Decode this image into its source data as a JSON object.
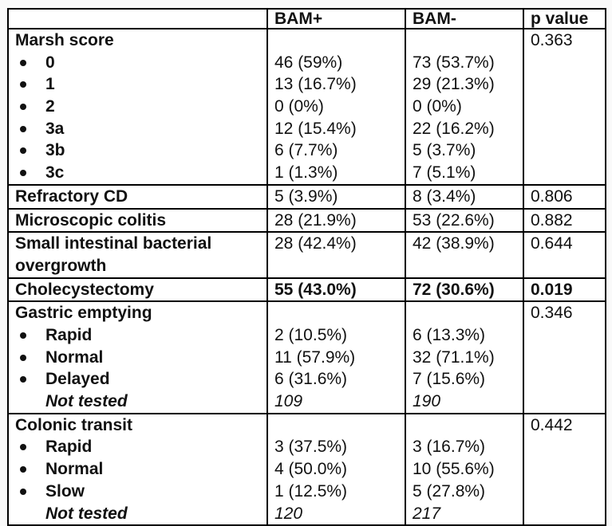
{
  "page": {
    "background": "#fafafa",
    "table_background": "#ffffff",
    "border_color": "#000000",
    "text_color": "#111111"
  },
  "table": {
    "header": {
      "col0": "",
      "col1": "BAM+",
      "col2": "BAM-",
      "col3": "p value"
    },
    "rows": [
      {
        "type": "group",
        "label": "Marsh score",
        "p": "0.363",
        "items": [
          {
            "bullet": true,
            "label": "0",
            "bam_pos": "46 (59%)",
            "bam_neg": "73 (53.7%)"
          },
          {
            "bullet": true,
            "label": "1",
            "bam_pos": "13 (16.7%)",
            "bam_neg": "29 (21.3%)"
          },
          {
            "bullet": true,
            "label": "2",
            "bam_pos": "0 (0%)",
            "bam_neg": "0 (0%)"
          },
          {
            "bullet": true,
            "label": "3a",
            "bam_pos": "12 (15.4%)",
            "bam_neg": "22 (16.2%)"
          },
          {
            "bullet": true,
            "label": "3b",
            "bam_pos": "6 (7.7%)",
            "bam_neg": "5 (3.7%)"
          },
          {
            "bullet": true,
            "label": "3c",
            "bam_pos": "1 (1.3%)",
            "bam_neg": "7 (5.1%)"
          }
        ]
      },
      {
        "type": "simple",
        "label": "Refractory CD",
        "bam_pos": "5 (3.9%)",
        "bam_neg": "8 (3.4%)",
        "p": "0.806",
        "bold_values": false
      },
      {
        "type": "simple",
        "label": "Microscopic colitis",
        "bam_pos": "28 (21.9%)",
        "bam_neg": "53 (22.6%)",
        "p": "0.882",
        "bold_values": false
      },
      {
        "type": "simple",
        "label": "Small intestinal bacterial overgrowth",
        "bam_pos": "28 (42.4%)",
        "bam_neg": "42 (38.9%)",
        "p": "0.644",
        "bold_values": false
      },
      {
        "type": "simple",
        "label": "Cholecystectomy",
        "bam_pos": "55 (43.0%)",
        "bam_neg": "72 (30.6%)",
        "p": "0.019",
        "bold_values": true
      },
      {
        "type": "group",
        "label": "Gastric emptying",
        "p": "0.346",
        "items": [
          {
            "bullet": true,
            "label": "Rapid",
            "bam_pos": "2 (10.5%)",
            "bam_neg": "6 (13.3%)"
          },
          {
            "bullet": true,
            "label": "Normal",
            "bam_pos": "11 (57.9%)",
            "bam_neg": "32 (71.1%)"
          },
          {
            "bullet": true,
            "label": "Delayed",
            "bam_pos": "6 (31.6%)",
            "bam_neg": "7 (15.6%)"
          },
          {
            "bullet": false,
            "italic": true,
            "label": "Not tested",
            "bam_pos": "109",
            "bam_neg": "190"
          }
        ]
      },
      {
        "type": "group",
        "label": "Colonic transit",
        "p": "0.442",
        "items": [
          {
            "bullet": true,
            "label": "Rapid",
            "bam_pos": "3 (37.5%)",
            "bam_neg": "3 (16.7%)"
          },
          {
            "bullet": true,
            "label": "Normal",
            "bam_pos": "4 (50.0%)",
            "bam_neg": "10 (55.6%)"
          },
          {
            "bullet": true,
            "label": "Slow",
            "bam_pos": "1 (12.5%)",
            "bam_neg": "5 (27.8%)"
          },
          {
            "bullet": false,
            "italic": true,
            "label": "Not tested",
            "bam_pos": "120",
            "bam_neg": "217"
          }
        ]
      }
    ]
  }
}
